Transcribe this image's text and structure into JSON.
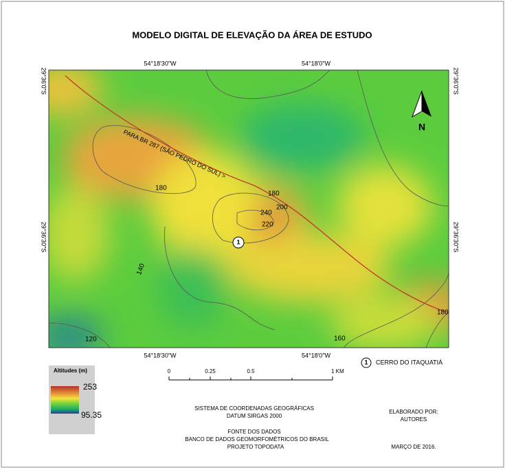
{
  "title": "MODELO DIGITAL DE ELEVAÇÃO DA ÁREA DE ESTUDO",
  "map": {
    "lon_labels": [
      "54°18'30\"W",
      "54°18'0\"W"
    ],
    "lat_labels": [
      "29°36'0\"S",
      "29°36'30\"S"
    ],
    "north": "N",
    "road": "PARA BR 287 (SÃO PEDRO DO SUL) >",
    "contours": [
      "180",
      "180",
      "200",
      "240",
      "220",
      "140",
      "120",
      "160",
      "180"
    ],
    "marker": "1"
  },
  "legend": {
    "title": "Altitudes (m)",
    "max": "253",
    "min": "95.35"
  },
  "scale": [
    "0",
    "0.25",
    "0.5",
    "1 KM"
  ],
  "site": {
    "number": "1",
    "name": "CERRO DO ITAQUATIÁ"
  },
  "notes": {
    "crs": "SISTEMA DE COORDENADAS GEOGRÁFICAS",
    "datum": "DATUM SIRGAS 2000",
    "source_title": "FONTE DOS DADOS",
    "source": "BANCO DE DADOS GEOMORFOMÉTRICOS DO BRASIL",
    "project": "PROJETO TOPODATA"
  },
  "credits": {
    "label": "ELABORADO POR:",
    "authors": "AUTORES",
    "date": "MARÇO DE 2016."
  }
}
